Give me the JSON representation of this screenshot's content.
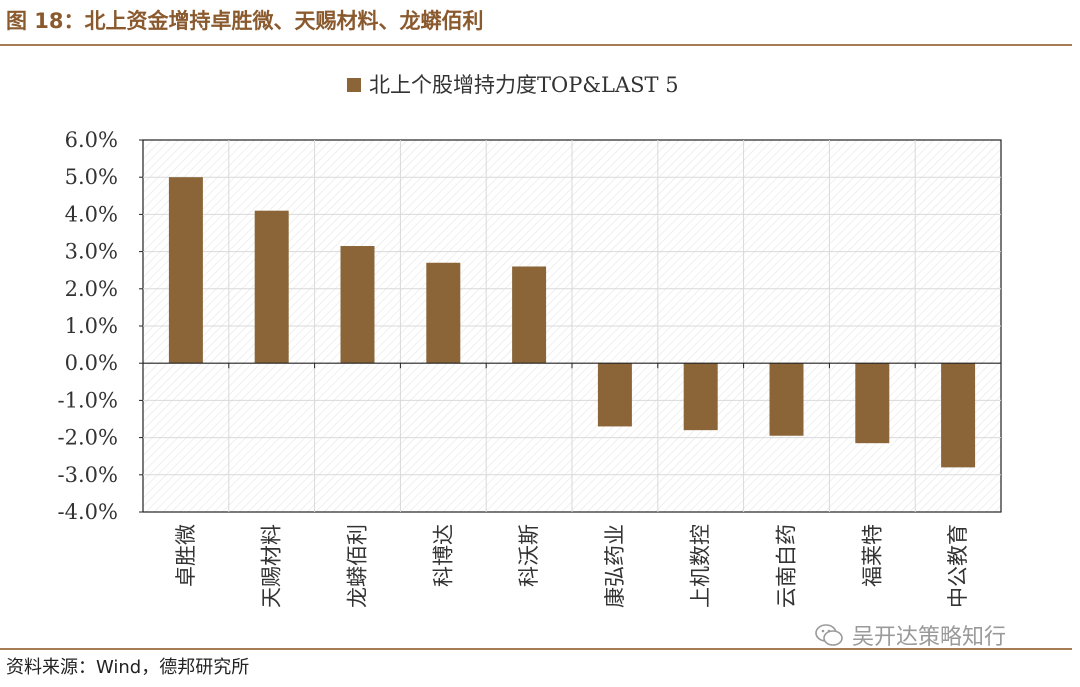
{
  "figure": {
    "title": "图 18：北上资金增持卓胜微、天赐材料、龙蟒佰利",
    "source": "资料来源：Wind，德邦研究所",
    "watermark": "吴开达策略知行"
  },
  "colors": {
    "bar": "#8b6538",
    "title": "#8a5a2e",
    "rule": "#a67c52"
  },
  "chart_data": {
    "type": "bar",
    "title": "北上个股增持力度TOP&LAST 5",
    "legend": {
      "label": "北上个股增持力度TOP&LAST 5",
      "position": "top-center"
    },
    "categories": [
      "卓胜微",
      "天赐材料",
      "龙蟒佰利",
      "科博达",
      "科沃斯",
      "康弘药业",
      "上机数控",
      "云南白药",
      "福莱特",
      "中公教育"
    ],
    "series": [
      {
        "name": "北上个股增持力度",
        "values": [
          5.0,
          4.1,
          3.15,
          2.7,
          2.6,
          -1.7,
          -1.8,
          -1.95,
          -2.15,
          -2.8
        ]
      }
    ],
    "unit": "%",
    "ylim": [
      -4.0,
      6.0
    ],
    "yticks": [
      6.0,
      5.0,
      4.0,
      3.0,
      2.0,
      1.0,
      0.0,
      -1.0,
      -2.0,
      -3.0,
      -4.0
    ],
    "ytick_labels": [
      "6.0%",
      "5.0%",
      "4.0%",
      "3.0%",
      "2.0%",
      "1.0%",
      "0.0%",
      "-1.0%",
      "-2.0%",
      "-3.0%",
      "-4.0%"
    ],
    "grid": true,
    "xlabel": "",
    "ylabel": ""
  }
}
